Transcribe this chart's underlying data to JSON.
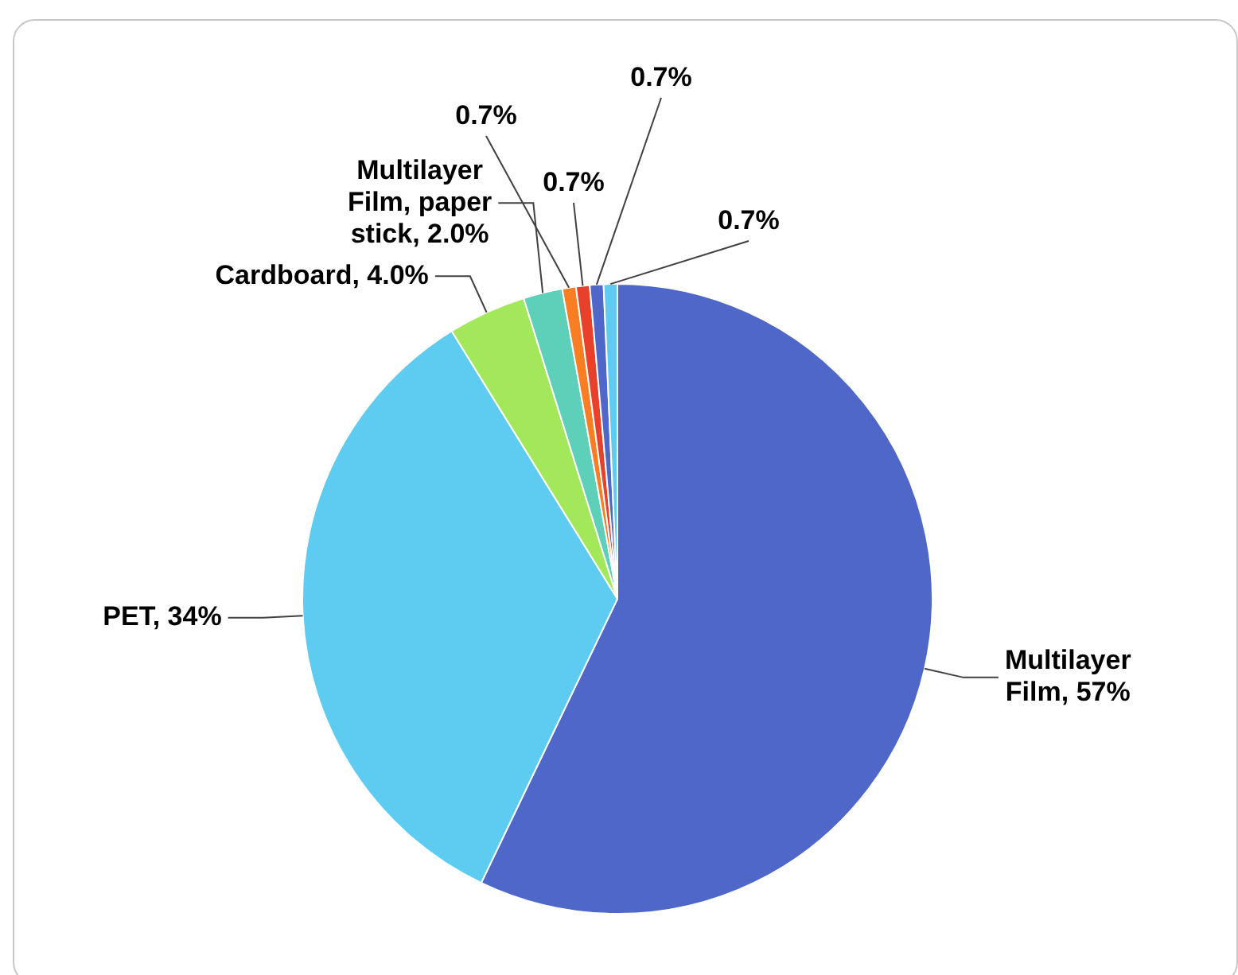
{
  "chart_data": {
    "type": "pie",
    "categories": [
      "Multilayer Film",
      "PET",
      "Cardboard",
      "Multilayer Film, paper stick",
      null,
      null,
      null,
      null
    ],
    "values": [
      57,
      34,
      4.0,
      2.0,
      0.7,
      0.7,
      0.7,
      0.7
    ],
    "value_labels": [
      "57%",
      "34%",
      "4.0%",
      "2.0%",
      "0.7%",
      "0.7%",
      "0.7%",
      "0.7%"
    ],
    "colors": [
      "#4f67c8",
      "#5ecbf0",
      "#a3e85a",
      "#5ecfb8",
      "#f97d22",
      "#e8402a",
      "#4f67c8",
      "#5ecbf0"
    ],
    "legend": false
  }
}
